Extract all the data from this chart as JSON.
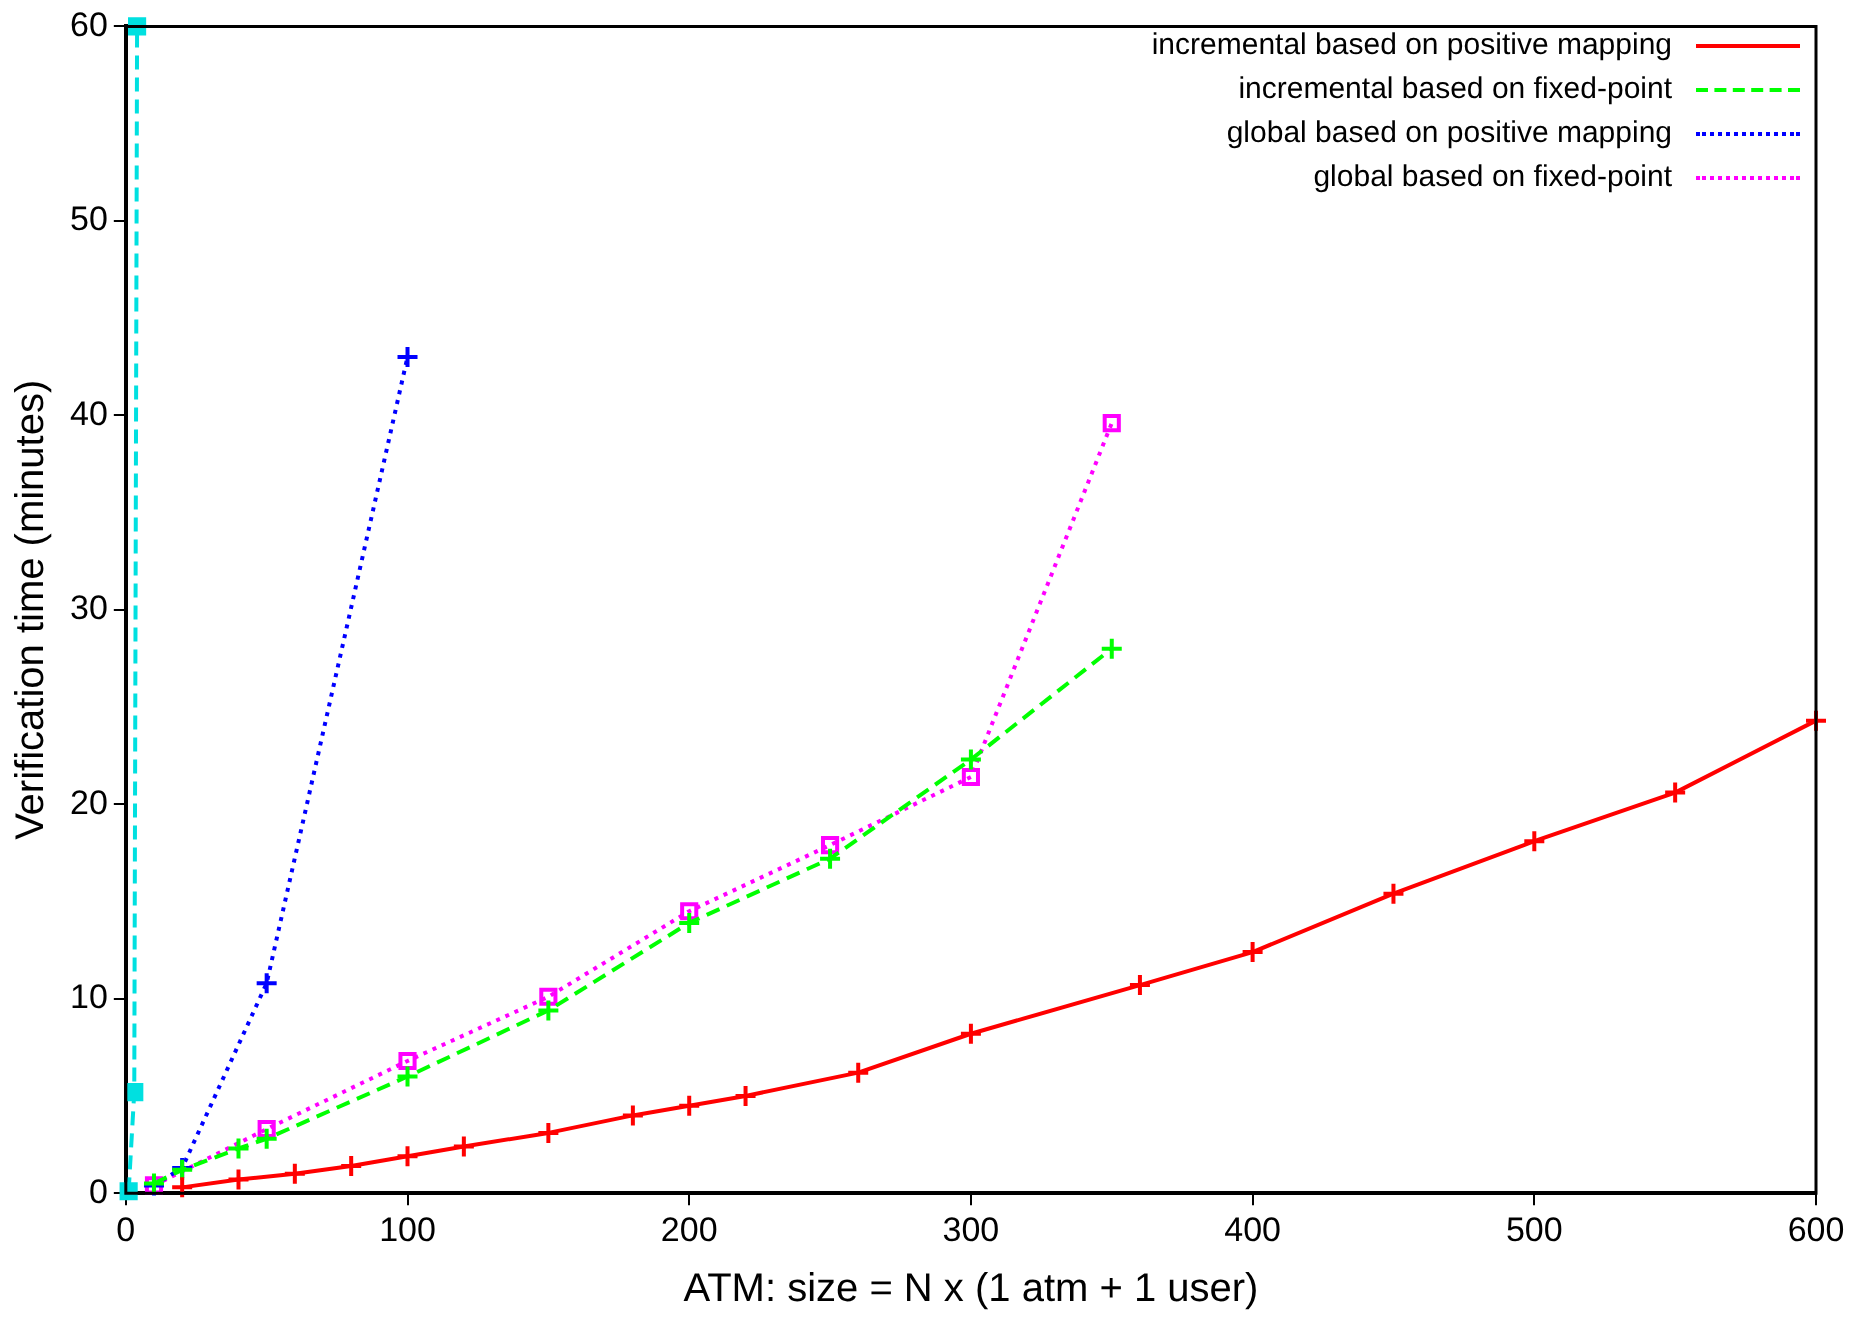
{
  "chart_data": {
    "type": "line",
    "xlabel": "ATM: size = N x (1 atm + 1 user)",
    "ylabel": "Verification time (minutes)",
    "xlim": [
      0,
      600
    ],
    "xticks": [
      0,
      100,
      200,
      300,
      400,
      500,
      600
    ],
    "ylim": [
      0,
      60
    ],
    "yticks": [
      0,
      10,
      20,
      30,
      40,
      50,
      60
    ],
    "grid": false,
    "legend": "top right",
    "series": [
      {
        "name": "incremental based on positive mapping",
        "color": "#ff0000",
        "marker": "cross",
        "line_style": "solid",
        "x": [
          20,
          40,
          60,
          80,
          100,
          120,
          150,
          180,
          200,
          220,
          260,
          300,
          360,
          400,
          450,
          500,
          550,
          600
        ],
        "values": [
          0.3,
          0.7,
          1.0,
          1.4,
          1.9,
          2.4,
          3.1,
          4.0,
          4.5,
          5.0,
          6.2,
          8.2,
          10.7,
          12.4,
          15.4,
          18.1,
          20.6,
          24.3
        ]
      },
      {
        "name": "incremental based on fixed-point",
        "color": "#00ff00",
        "marker": "cross",
        "line_style": "dashed",
        "x": [
          10,
          20,
          40,
          50,
          100,
          150,
          200,
          250,
          300,
          350
        ],
        "values": [
          0.5,
          1.2,
          2.3,
          2.8,
          6.0,
          9.4,
          13.9,
          17.2,
          22.3,
          28.0
        ]
      },
      {
        "name": "global based on positive mapping",
        "color": "#0000ff",
        "marker": "cross",
        "line_style": "dotted",
        "x": [
          10,
          20,
          50,
          100
        ],
        "values": [
          0.4,
          1.3,
          10.8,
          43.0
        ]
      },
      {
        "name": "global based on fixed-point",
        "color": "#ff00ff",
        "marker": "square",
        "line_style": "dotted",
        "x": [
          10,
          50,
          100,
          150,
          200,
          250,
          300,
          350
        ],
        "values": [
          0.4,
          3.3,
          6.8,
          10.1,
          14.5,
          17.9,
          21.4,
          39.6
        ]
      },
      {
        "color": "#00e0e0",
        "marker": "square",
        "line_style": "dashed",
        "x": [
          1,
          3,
          4
        ],
        "values": [
          0.1,
          5.2,
          60
        ]
      }
    ]
  }
}
